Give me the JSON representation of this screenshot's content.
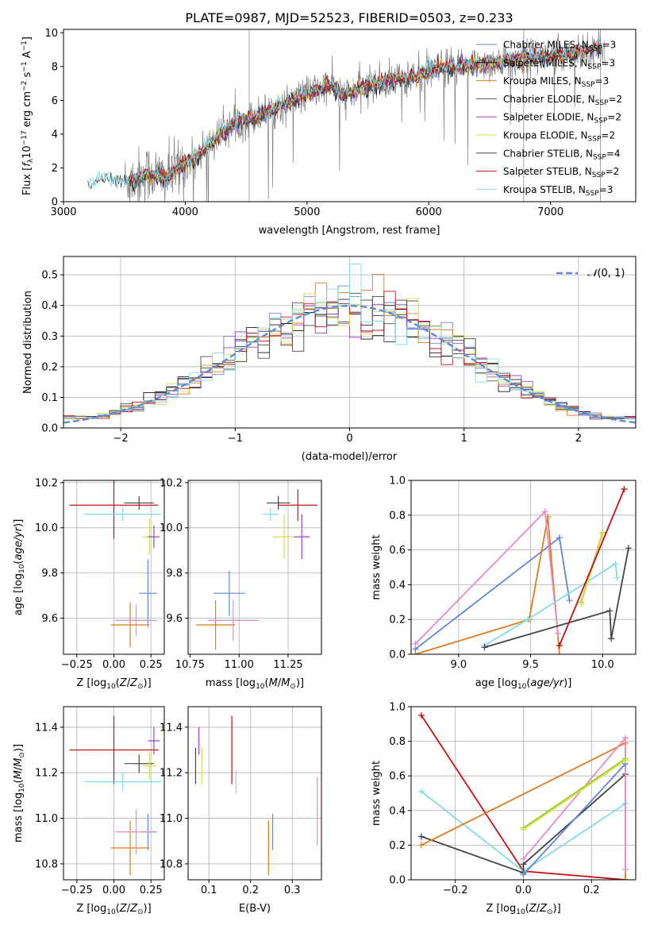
{
  "colors": {
    "chabrier_miles": "#5f87dd",
    "salpeter_miles": "#111111",
    "kroupa_miles": "#e07b1a",
    "chabrier_elodie": "#555555",
    "salpeter_elodie": "#9a45c9",
    "kroupa_elodie": "#d9e04c",
    "chabrier_stelib": "#444444",
    "salpeter_stelib": "#c41212",
    "kroupa_stelib": "#80dde5",
    "pink": "#e88ac5",
    "olive": "#9acd32",
    "gauss": "#5b8bd9",
    "data": "#7f7f7f",
    "grid": "#b0b0b0"
  },
  "chart_data": [
    {
      "id": "spectrum",
      "type": "line",
      "title": "PLATE=0987, MJD=52523, FIBERID=0503, z=0.233",
      "xlabel": "wavelength [Angstrom, rest frame]",
      "ylabel": "Flux [f_λ 10^-17 erg cm^-2 s^-1 A^-1]",
      "xlim": [
        3000,
        7700
      ],
      "ylim": [
        0,
        10.2
      ],
      "xticks": [
        "3000",
        "4000",
        "5000",
        "6000",
        "7000"
      ],
      "yticks": [
        "0",
        "2",
        "4",
        "6",
        "8",
        "10"
      ],
      "grid": false,
      "legend_position": "right",
      "legend": [
        "Chabrier MILES, N_SSP=3",
        "Salpeter MILES, N_SSP=3",
        "Kroupa MILES, N_SSP=3",
        "Chabrier ELODIE, N_SSP=2",
        "Salpeter ELODIE, N_SSP=2",
        "Kroupa ELODIE, N_SSP=2",
        "Chabrier STELIB, N_SSP=4",
        "Salpeter STELIB, N_SSP=2",
        "Kroupa STELIB, N_SSP=3"
      ],
      "legend_parts": [
        [
          "Chabrier MILES, N",
          "SSP",
          "=3"
        ],
        [
          "Salpeter MILES, N",
          "SSP",
          "=3"
        ],
        [
          "Kroupa MILES, N",
          "SSP",
          "=3"
        ],
        [
          "Chabrier ELODIE, N",
          "SSP",
          "=2"
        ],
        [
          "Salpeter ELODIE, N",
          "SSP",
          "=2"
        ],
        [
          "Kroupa ELODIE, N",
          "SSP",
          "=2"
        ],
        [
          "Chabrier STELIB, N",
          "SSP",
          "=4"
        ],
        [
          "Salpeter STELIB, N",
          "SSP",
          "=2"
        ],
        [
          "Kroupa STELIB, N",
          "SSP",
          "=3"
        ]
      ],
      "continuum": [
        [
          3200,
          0.9
        ],
        [
          3300,
          1.3
        ],
        [
          3500,
          1.1
        ],
        [
          3700,
          1.7
        ],
        [
          3850,
          1.4
        ],
        [
          3950,
          2.0
        ],
        [
          4050,
          2.4
        ],
        [
          4200,
          3.4
        ],
        [
          4400,
          4.6
        ],
        [
          4600,
          5.1
        ],
        [
          4800,
          5.7
        ],
        [
          5000,
          6.4
        ],
        [
          5200,
          6.9
        ],
        [
          5300,
          6.3
        ],
        [
          5500,
          6.8
        ],
        [
          5700,
          7.2
        ],
        [
          5900,
          7.4
        ],
        [
          6100,
          7.9
        ],
        [
          6300,
          8.0
        ],
        [
          6500,
          8.2
        ],
        [
          6800,
          8.5
        ],
        [
          7000,
          8.6
        ],
        [
          7200,
          8.9
        ],
        [
          7400,
          9.1
        ]
      ],
      "data_range": [
        3500,
        7450
      ],
      "models_range": [
        3200,
        7420
      ]
    },
    {
      "id": "residuals",
      "type": "histogram",
      "xlabel": "(data-model)/error",
      "ylabel": "Normed distribution",
      "xlim": [
        -2.5,
        2.5
      ],
      "ylim": [
        0,
        0.56
      ],
      "xticks": [
        "−2",
        "−1",
        "0",
        "1",
        "2"
      ],
      "yticks": [
        "0.0",
        "0.1",
        "0.2",
        "0.3",
        "0.4",
        "0.5"
      ],
      "grid": true,
      "legend": [
        "N(0,1)"
      ],
      "legend_position": "top-right",
      "bin_width": 0.1
    },
    {
      "id": "age-vs-metallicity",
      "type": "errorbar",
      "xlabel": "Z [log10(Z/Z⊙)]",
      "ylabel": "age [log10(age/yr)]",
      "xlim": [
        -0.34,
        0.34
      ],
      "ylim": [
        9.44,
        10.21
      ],
      "xticks": [
        "−0.25",
        "0.00",
        "0.25"
      ],
      "xtick_values": [
        -0.25,
        0,
        0.25
      ],
      "yticks": [
        "9.6",
        "9.8",
        "10.0",
        "10.2"
      ],
      "ytick_values": [
        9.6,
        9.8,
        10.0,
        10.2
      ],
      "grid": true,
      "points": [
        {
          "c": "salpeter_stelib",
          "x": 0.0,
          "xe": 0.3,
          "y": 10.1,
          "ye": 0.15
        },
        {
          "c": "kroupa_stelib",
          "x": 0.06,
          "xe": 0.26,
          "y": 10.06,
          "ye": 0.03
        },
        {
          "c": "chabrier_stelib",
          "x": 0.17,
          "xe": 0.1,
          "y": 10.11,
          "ye": 0.03
        },
        {
          "c": "kroupa_elodie",
          "x": 0.24,
          "xe": 0.05,
          "y": 9.96,
          "ye": 0.08
        },
        {
          "c": "salpeter_elodie",
          "x": 0.27,
          "xe": 0.04,
          "y": 9.96,
          "ye": 0.05
        },
        {
          "c": "chabrier_miles",
          "x": 0.23,
          "xe": 0.06,
          "y": 9.71,
          "ye": 0.15
        },
        {
          "c": "kroupa_miles",
          "x": 0.11,
          "xe": 0.13,
          "y": 9.57,
          "ye": 0.1
        },
        {
          "c": "pink",
          "x": 0.15,
          "xe": 0.14,
          "y": 9.59,
          "ye": 0.07
        }
      ]
    },
    {
      "id": "age-vs-mass",
      "type": "errorbar",
      "xlabel": "mass [log10(M/M⊙)]",
      "ylabel": "",
      "xlim": [
        10.74,
        11.42
      ],
      "ylim": [
        9.44,
        10.21
      ],
      "xticks": [
        "10.75",
        "11.00",
        "11.25"
      ],
      "xtick_values": [
        10.75,
        11.0,
        11.25
      ],
      "yticks": [
        "9.6",
        "9.8",
        "10.0",
        "10.2"
      ],
      "ytick_values": [
        9.6,
        9.8,
        10.0,
        10.2
      ],
      "grid": true,
      "points": [
        {
          "c": "salpeter_stelib",
          "x": 11.3,
          "xe": 0.1,
          "y": 10.1,
          "ye": 0.07
        },
        {
          "c": "kroupa_stelib",
          "x": 11.16,
          "xe": 0.04,
          "y": 10.06,
          "ye": 0.03
        },
        {
          "c": "chabrier_stelib",
          "x": 11.2,
          "xe": 0.06,
          "y": 10.11,
          "ye": 0.03
        },
        {
          "c": "kroupa_elodie",
          "x": 11.23,
          "xe": 0.06,
          "y": 9.96,
          "ye": 0.1
        },
        {
          "c": "salpeter_elodie",
          "x": 11.32,
          "xe": 0.04,
          "y": 9.96,
          "ye": 0.1
        },
        {
          "c": "chabrier_miles",
          "x": 10.95,
          "xe": 0.08,
          "y": 9.71,
          "ye": 0.1
        },
        {
          "c": "kroupa_miles",
          "x": 10.88,
          "xe": 0.1,
          "y": 9.57,
          "ye": 0.11
        },
        {
          "c": "pink",
          "x": 10.97,
          "xe": 0.13,
          "y": 9.59,
          "ye": 0.09
        }
      ]
    },
    {
      "id": "weight-vs-age",
      "type": "line",
      "xlabel": "age [log10(age/yr)]",
      "ylabel": "mass weight",
      "xlim": [
        8.67,
        10.23
      ],
      "ylim": [
        0,
        1
      ],
      "xticks": [
        "9.0",
        "9.5",
        "10.0"
      ],
      "xtick_values": [
        9.0,
        9.5,
        10.0
      ],
      "yticks": [
        "0.0",
        "0.2",
        "0.4",
        "0.6",
        "0.8",
        "1.0"
      ],
      "ytick_values": [
        0,
        0.2,
        0.4,
        0.6,
        0.8,
        1.0
      ],
      "grid": true,
      "series": [
        {
          "c": "chabrier_miles",
          "x": [
            8.7,
            9.7,
            9.77
          ],
          "y": [
            0.03,
            0.67,
            0.31
          ]
        },
        {
          "c": "kroupa_miles",
          "x": [
            8.7,
            9.49,
            9.62,
            9.7
          ],
          "y": [
            0.0,
            0.2,
            0.79,
            0.0
          ]
        },
        {
          "c": "pink",
          "x": [
            8.7,
            9.6,
            9.69
          ],
          "y": [
            0.06,
            0.82,
            0.12
          ]
        },
        {
          "c": "kroupa_stelib",
          "x": [
            9.18,
            9.48,
            10.09,
            10.1
          ],
          "y": [
            0.05,
            0.2,
            0.52,
            0.44
          ]
        },
        {
          "c": "chabrier_stelib",
          "x": [
            9.18,
            10.05,
            10.06,
            10.18
          ],
          "y": [
            0.04,
            0.25,
            0.09,
            0.61
          ]
        },
        {
          "c": "olive",
          "x": [
            9.85,
            10.0
          ],
          "y": [
            0.3,
            0.7
          ]
        },
        {
          "c": "kroupa_elodie",
          "x": [
            9.85,
            10.0
          ],
          "y": [
            0.29,
            0.69
          ]
        },
        {
          "c": "salpeter_stelib",
          "x": [
            9.7,
            10.15
          ],
          "y": [
            0.05,
            0.95
          ]
        }
      ]
    },
    {
      "id": "mass-vs-metallicity",
      "type": "errorbar",
      "xlabel": "Z [log10(Z/Z⊙)]",
      "ylabel": "mass [log10(M/M⊙)]",
      "xlim": [
        -0.34,
        0.34
      ],
      "ylim": [
        10.73,
        11.49
      ],
      "xticks": [
        "−0.25",
        "0.00",
        "0.25"
      ],
      "xtick_values": [
        -0.25,
        0,
        0.25
      ],
      "yticks": [
        "10.8",
        "11.0",
        "11.2",
        "11.4"
      ],
      "ytick_values": [
        10.8,
        11.0,
        11.2,
        11.4
      ],
      "grid": true,
      "points": [
        {
          "c": "salpeter_stelib",
          "x": 0.0,
          "xe": 0.3,
          "y": 11.3,
          "ye": 0.15
        },
        {
          "c": "kroupa_stelib",
          "x": 0.06,
          "xe": 0.26,
          "y": 11.16,
          "ye": 0.04
        },
        {
          "c": "chabrier_stelib",
          "x": 0.17,
          "xe": 0.1,
          "y": 11.24,
          "ye": 0.04
        },
        {
          "c": "kroupa_elodie",
          "x": 0.24,
          "xe": 0.05,
          "y": 11.23,
          "ye": 0.06
        },
        {
          "c": "salpeter_elodie",
          "x": 0.27,
          "xe": 0.04,
          "y": 11.34,
          "ye": 0.06
        },
        {
          "c": "chabrier_miles",
          "x": 0.23,
          "xe": 0.06,
          "y": 10.94,
          "ye": 0.08
        },
        {
          "c": "kroupa_miles",
          "x": 0.11,
          "xe": 0.13,
          "y": 10.87,
          "ye": 0.12
        },
        {
          "c": "pink",
          "x": 0.15,
          "xe": 0.14,
          "y": 10.94,
          "ye": 0.1
        }
      ]
    },
    {
      "id": "mass-vs-ebv",
      "type": "errorbar",
      "xlabel": "E(B-V)",
      "ylabel": "",
      "xlim": [
        0.05,
        0.37
      ],
      "ylim": [
        10.73,
        11.49
      ],
      "xticks": [
        "0.1",
        "0.2",
        "0.3"
      ],
      "xtick_values": [
        0.1,
        0.2,
        0.3
      ],
      "yticks": [
        "10.8",
        "11.0",
        "11.2",
        "11.4"
      ],
      "ytick_values": [
        10.8,
        11.0,
        11.2,
        11.4
      ],
      "grid": true,
      "points": [
        {
          "c": "chabrier_stelib",
          "x": 0.068,
          "xe": 0,
          "y": 11.23,
          "ye": 0.08
        },
        {
          "c": "salpeter_elodie",
          "x": 0.076,
          "xe": 0,
          "y": 11.34,
          "ye": 0.06
        },
        {
          "c": "kroupa_elodie",
          "x": 0.083,
          "xe": 0,
          "y": 11.23,
          "ye": 0.08
        },
        {
          "c": "salpeter_stelib",
          "x": 0.155,
          "xe": 0,
          "y": 11.3,
          "ye": 0.15
        },
        {
          "c": "kroupa_stelib",
          "x": 0.165,
          "xe": 0,
          "y": 11.16,
          "ye": 0.05
        },
        {
          "c": "kroupa_miles",
          "x": 0.243,
          "xe": 0,
          "y": 10.87,
          "ye": 0.12
        },
        {
          "c": "chabrier_miles",
          "x": 0.253,
          "xe": 0,
          "y": 10.94,
          "ye": 0.08
        },
        {
          "c": "pink",
          "x": 0.36,
          "xe": 0,
          "y": 11.03,
          "ye": 0.15
        }
      ]
    },
    {
      "id": "weight-vs-metallicity",
      "type": "line",
      "xlabel": "Z [log10(Z/Z⊙)]",
      "ylabel": "mass weight",
      "xlim": [
        -0.33,
        0.33
      ],
      "ylim": [
        0,
        1
      ],
      "xticks": [
        "−0.2",
        "0.0",
        "0.2"
      ],
      "xtick_values": [
        -0.2,
        0,
        0.2
      ],
      "yticks": [
        "0.0",
        "0.2",
        "0.4",
        "0.6",
        "0.8",
        "1.0"
      ],
      "ytick_values": [
        0,
        0.2,
        0.4,
        0.6,
        0.8,
        1.0
      ],
      "grid": true,
      "series": [
        {
          "c": "salpeter_stelib",
          "x": [
            -0.3,
            0.0,
            0.3
          ],
          "y": [
            0.95,
            0.05,
            0.0
          ]
        },
        {
          "c": "kroupa_stelib",
          "x": [
            -0.3,
            0.0,
            0.3
          ],
          "y": [
            0.51,
            0.05,
            0.44
          ]
        },
        {
          "c": "chabrier_stelib",
          "x": [
            -0.3,
            0.0,
            0.0,
            0.3
          ],
          "y": [
            0.25,
            0.04,
            0.09,
            0.61
          ]
        },
        {
          "c": "kroupa_miles",
          "x": [
            -0.3,
            0.3,
            0.3
          ],
          "y": [
            0.2,
            0.79,
            0.0
          ]
        },
        {
          "c": "pink",
          "x": [
            0.0,
            0.3,
            0.3
          ],
          "y": [
            0.12,
            0.82,
            0.06
          ]
        },
        {
          "c": "chabrier_miles",
          "x": [
            0.0,
            0.3
          ],
          "y": [
            0.03,
            0.67
          ]
        },
        {
          "c": "olive",
          "x": [
            0.0,
            0.3
          ],
          "y": [
            0.3,
            0.7
          ]
        },
        {
          "c": "kroupa_elodie",
          "x": [
            0.0,
            0.3
          ],
          "y": [
            0.29,
            0.69
          ]
        }
      ]
    }
  ]
}
